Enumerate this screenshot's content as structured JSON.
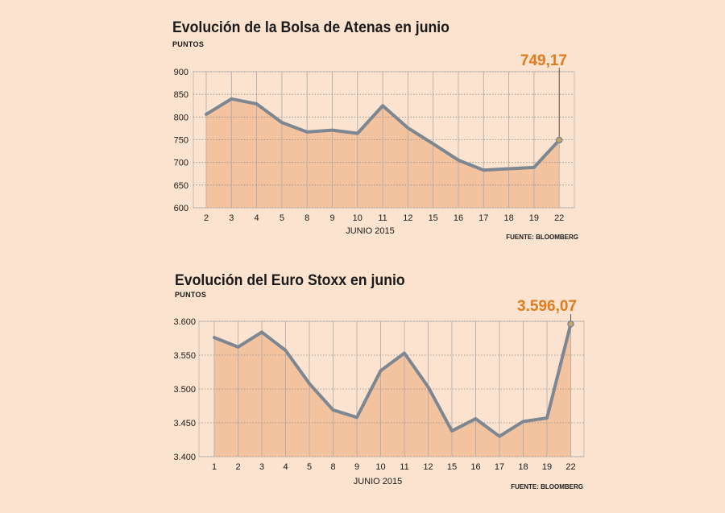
{
  "colors": {
    "background": "#fbe3cf",
    "area_fill": "#f3c3a0",
    "line": "#7d8791",
    "grid": "#a9a9a9",
    "highlight": "#e07b1e",
    "text": "#1a1a1a"
  },
  "chart_data": [
    {
      "type": "area",
      "title": "Evolución de la Bolsa de Atenas en junio",
      "units": "PUNTOS",
      "xlabel": "JUNIO 2015",
      "source": "FUENTE: BLOOMBERG",
      "callout": "749,17",
      "categories": [
        "2",
        "3",
        "4",
        "5",
        "8",
        "9",
        "10",
        "11",
        "12",
        "15",
        "16",
        "17",
        "18",
        "19",
        "22"
      ],
      "values": [
        806,
        840,
        829,
        788,
        767,
        771,
        764,
        825,
        776,
        741,
        705,
        683,
        686,
        689,
        749.17
      ],
      "ylim": [
        600,
        900
      ],
      "yticks": [
        600,
        650,
        700,
        750,
        800,
        850,
        900
      ],
      "ytick_labels": [
        "600",
        "650",
        "700",
        "750",
        "800",
        "850",
        "900"
      ],
      "grid": true
    },
    {
      "type": "area",
      "title": "Evolución del Euro Stoxx en junio",
      "units": "PUNTOS",
      "xlabel": "JUNIO 2015",
      "source": "FUENTE: BLOOMBERG",
      "callout": "3.596,07",
      "categories": [
        "1",
        "2",
        "3",
        "4",
        "5",
        "8",
        "9",
        "10",
        "11",
        "12",
        "15",
        "16",
        "17",
        "18",
        "19",
        "22"
      ],
      "values": [
        3576,
        3562,
        3584,
        3557,
        3508,
        3469,
        3458,
        3527,
        3553,
        3503,
        3438,
        3456,
        3430,
        3452,
        3457,
        3596.07
      ],
      "ylim": [
        3400,
        3600
      ],
      "yticks": [
        3400,
        3450,
        3500,
        3550,
        3600
      ],
      "ytick_labels": [
        "3.400",
        "3.450",
        "3.500",
        "3.550",
        "3.600"
      ],
      "grid": true
    }
  ]
}
